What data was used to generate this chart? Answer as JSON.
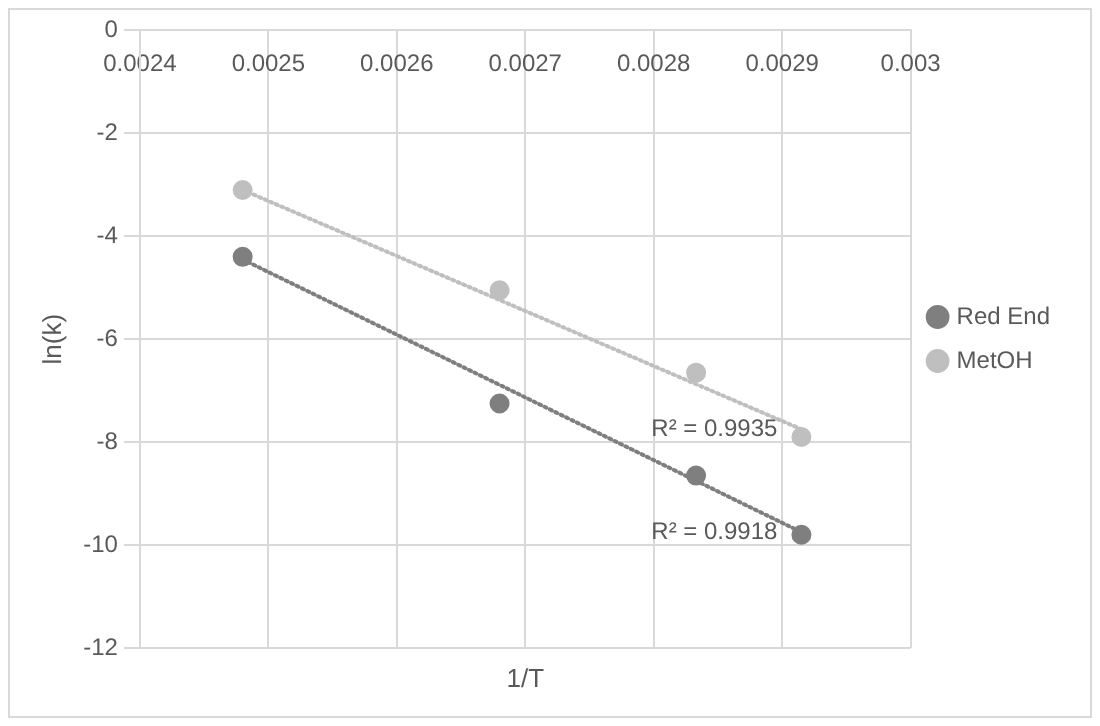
{
  "chart_data": {
    "type": "scatter",
    "xlabel": "1/T",
    "ylabel": "ln(k)",
    "xlim": [
      0.0024,
      0.003
    ],
    "xticks": [
      0.0024,
      0.0025,
      0.0026,
      0.0027,
      0.0028,
      0.0029,
      0.003
    ],
    "ylim": [
      -12,
      0
    ],
    "yticks": [
      -12,
      -10,
      -8,
      -6,
      -4,
      -2,
      0
    ],
    "grid": true,
    "legend": "right",
    "marker": "circle",
    "series": [
      {
        "name": "Red End",
        "color": "#7f7f7f",
        "x": [
          0.00248,
          0.00268,
          0.002833,
          0.002915
        ],
        "values": [
          -4.4,
          -7.25,
          -8.65,
          -9.8
        ]
      },
      {
        "name": "MetOH",
        "color": "#bfbfbf",
        "x": [
          0.00248,
          0.00268,
          0.002833,
          0.002915
        ],
        "values": [
          -3.1,
          -5.05,
          -6.65,
          -7.9
        ]
      },
      {
        "type": "line",
        "color": "#bfbfbf",
        "line_style": "dotted",
        "marker": "none",
        "x": [
          0.00248,
          0.002915
        ],
        "values": [
          -3.1,
          -7.75
        ]
      },
      {
        "type": "line",
        "color": "#7f7f7f",
        "line_style": "dotted",
        "marker": "none",
        "x": [
          0.00248,
          0.002915
        ],
        "values": [
          -4.45,
          -9.75
        ]
      }
    ],
    "annotations": [
      "R² = 0.9935",
      "R² = 0.9918"
    ]
  }
}
